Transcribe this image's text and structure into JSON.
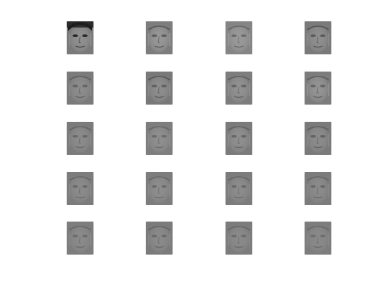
{
  "figure": {
    "rows": 5,
    "cols": 4,
    "background_color": "#ffffff",
    "tiles": [
      {
        "tone": "#7a7a7a",
        "dark": "#1e1e1e",
        "light": "#a8a8a8"
      },
      {
        "tone": "#7d7d7d",
        "dark": "#3c3c3c",
        "light": "#b4b4b4"
      },
      {
        "tone": "#858585",
        "dark": "#505050",
        "light": "#b0b0b0"
      },
      {
        "tone": "#7a7a7a",
        "dark": "#3a3a3a",
        "light": "#a6a6a6"
      },
      {
        "tone": "#7b7b7b",
        "dark": "#4c4c4c",
        "light": "#a0a0a0"
      },
      {
        "tone": "#797979",
        "dark": "#444444",
        "light": "#a4a4a4"
      },
      {
        "tone": "#7d7d7d",
        "dark": "#4a4a4a",
        "light": "#a8a8a8"
      },
      {
        "tone": "#7c7c7c",
        "dark": "#484848",
        "light": "#b0b0b0"
      },
      {
        "tone": "#7b7b7b",
        "dark": "#545454",
        "light": "#9e9e9e"
      },
      {
        "tone": "#7e7e7e",
        "dark": "#575757",
        "light": "#a2a2a2"
      },
      {
        "tone": "#7b7b7b",
        "dark": "#4e4e4e",
        "light": "#a6a6a6"
      },
      {
        "tone": "#7a7a7a",
        "dark": "#4a4a4a",
        "light": "#a0a0a0"
      },
      {
        "tone": "#7c7c7c",
        "dark": "#585858",
        "light": "#9c9c9c"
      },
      {
        "tone": "#7d7d7d",
        "dark": "#5a5a5a",
        "light": "#a0a0a0"
      },
      {
        "tone": "#7c7c7c",
        "dark": "#575757",
        "light": "#9e9e9e"
      },
      {
        "tone": "#7c7c7c",
        "dark": "#565656",
        "light": "#9c9c9c"
      },
      {
        "tone": "#7d7d7d",
        "dark": "#5a5a5a",
        "light": "#9a9a9a"
      },
      {
        "tone": "#7b7b7b",
        "dark": "#575757",
        "light": "#9c9c9c"
      },
      {
        "tone": "#7c7c7c",
        "dark": "#5a5a5a",
        "light": "#9a9a9a"
      },
      {
        "tone": "#7d7d7d",
        "dark": "#5c5c5c",
        "light": "#989898"
      }
    ]
  }
}
